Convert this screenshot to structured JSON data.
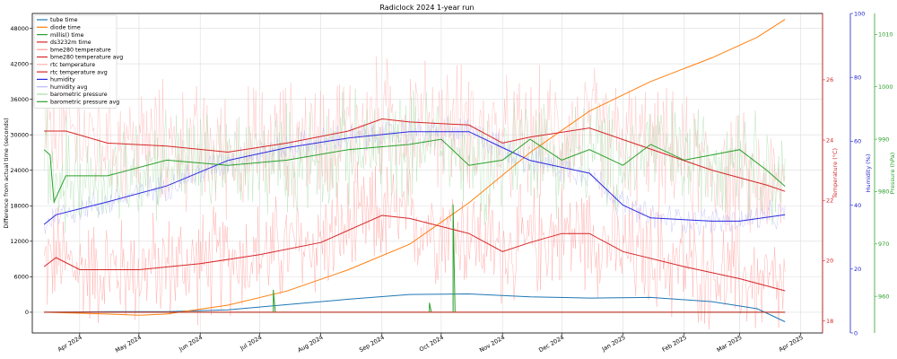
{
  "chart_data": {
    "type": "line",
    "title": "Radiclock 2024 1-year run",
    "ylabel": "Difference from actual time (seconds)",
    "x_ticks": [
      "Apr 2024",
      "May 2024",
      "Jun 2024",
      "Jul 2024",
      "Aug 2024",
      "Sep 2024",
      "Oct 2024",
      "Nov 2024",
      "Dec 2024",
      "Jan 2025",
      "Feb 2025",
      "Mar 2025",
      "Apr 2025"
    ],
    "xlim": [
      "2024-03-08",
      "2025-04-12"
    ],
    "grid": true,
    "legend_position": "upper left",
    "axes": {
      "left": {
        "label": "Difference from actual time (seconds)",
        "range": [
          -3500,
          50500
        ],
        "ticks": [
          0,
          6000,
          12000,
          18000,
          24000,
          30000,
          36000,
          42000,
          48000
        ],
        "color": "#000000"
      },
      "temp": {
        "label": "Temperature (°C)",
        "range": [
          17.6,
          28.2
        ],
        "ticks": [
          18,
          20,
          22,
          24,
          26
        ],
        "color": "#d62728"
      },
      "hum": {
        "label": "Humidity (%)",
        "range": [
          0,
          100
        ],
        "ticks": [
          0,
          20,
          40,
          60,
          80,
          100
        ],
        "color": "#1f1fcc"
      },
      "press": {
        "label": "Pressure (hPa)",
        "range": [
          953,
          1014
        ],
        "ticks": [
          960,
          970,
          980,
          990,
          1000,
          1010
        ],
        "color": "#2ca02c"
      }
    },
    "series": [
      {
        "name": "tube time",
        "axis": "left",
        "color": "#1f77b4",
        "points": [
          [
            "2024-03-14",
            0
          ],
          [
            "2024-04-15",
            100
          ],
          [
            "2024-05-15",
            100
          ],
          [
            "2024-06-15",
            400
          ],
          [
            "2024-07-15",
            1300
          ],
          [
            "2024-08-15",
            2200
          ],
          [
            "2024-09-15",
            3000
          ],
          [
            "2024-10-15",
            3100
          ],
          [
            "2024-11-15",
            2600
          ],
          [
            "2024-12-15",
            2400
          ],
          [
            "2025-01-15",
            2500
          ],
          [
            "2025-02-15",
            1800
          ],
          [
            "2025-03-10",
            600
          ],
          [
            "2025-03-24",
            -1600
          ]
        ]
      },
      {
        "name": "diode time",
        "axis": "left",
        "color": "#ff7f0e",
        "points": [
          [
            "2024-03-14",
            0
          ],
          [
            "2024-04-15",
            -300
          ],
          [
            "2024-05-01",
            -500
          ],
          [
            "2024-05-15",
            -300
          ],
          [
            "2024-06-15",
            1200
          ],
          [
            "2024-07-15",
            3600
          ],
          [
            "2024-08-15",
            7200
          ],
          [
            "2024-09-15",
            11500
          ],
          [
            "2024-10-15",
            18500
          ],
          [
            "2024-11-15",
            27000
          ],
          [
            "2024-12-15",
            34000
          ],
          [
            "2025-01-15",
            39000
          ],
          [
            "2025-02-15",
            43000
          ],
          [
            "2025-03-10",
            46500
          ],
          [
            "2025-03-24",
            49500
          ]
        ]
      },
      {
        "name": "millis() time",
        "axis": "left",
        "color": "#2ca02c",
        "points": [
          [
            "2024-03-14",
            0
          ],
          [
            "2024-07-08",
            0
          ],
          [
            "2024-07-08",
            3800
          ],
          [
            "2024-07-09",
            0
          ],
          [
            "2024-09-25",
            0
          ],
          [
            "2024-09-25",
            1600
          ],
          [
            "2024-09-26",
            0
          ],
          [
            "2024-10-07",
            0
          ],
          [
            "2024-10-07",
            18200
          ],
          [
            "2024-10-08",
            0
          ],
          [
            "2025-03-24",
            0
          ]
        ]
      },
      {
        "name": "ds3232m time",
        "axis": "left",
        "color": "#d62728",
        "points": [
          [
            "2024-03-14",
            0
          ],
          [
            "2025-03-24",
            0
          ]
        ]
      },
      {
        "name": "bme280 temperature",
        "axis": "temp",
        "color": "#ff9896",
        "noisy": true,
        "points": []
      },
      {
        "name": "bme280 temperature avg",
        "axis": "temp",
        "color": "#d62728",
        "points": [
          [
            "2024-03-14",
            19.8
          ],
          [
            "2024-03-20",
            20.1
          ],
          [
            "2024-04-01",
            19.7
          ],
          [
            "2024-05-01",
            19.7
          ],
          [
            "2024-06-01",
            19.9
          ],
          [
            "2024-07-01",
            20.2
          ],
          [
            "2024-08-01",
            20.6
          ],
          [
            "2024-09-01",
            21.5
          ],
          [
            "2024-09-15",
            21.4
          ],
          [
            "2024-10-15",
            20.9
          ],
          [
            "2024-11-01",
            20.3
          ],
          [
            "2024-11-15",
            20.6
          ],
          [
            "2024-12-01",
            20.9
          ],
          [
            "2024-12-15",
            20.9
          ],
          [
            "2025-01-01",
            20.3
          ],
          [
            "2025-02-01",
            19.8
          ],
          [
            "2025-03-01",
            19.4
          ],
          [
            "2025-03-24",
            19.0
          ]
        ]
      },
      {
        "name": "rtc temperature",
        "axis": "temp",
        "color": "#ffb0b0",
        "noisy": true,
        "points": []
      },
      {
        "name": "rtc temperature avg",
        "axis": "temp",
        "color": "#d62728",
        "points": [
          [
            "2024-03-14",
            24.3
          ],
          [
            "2024-03-25",
            24.3
          ],
          [
            "2024-04-15",
            23.9
          ],
          [
            "2024-05-15",
            23.8
          ],
          [
            "2024-06-15",
            23.6
          ],
          [
            "2024-07-15",
            23.9
          ],
          [
            "2024-08-15",
            24.3
          ],
          [
            "2024-09-01",
            24.7
          ],
          [
            "2024-09-15",
            24.6
          ],
          [
            "2024-10-15",
            24.5
          ],
          [
            "2024-11-01",
            23.9
          ],
          [
            "2024-11-15",
            24.1
          ],
          [
            "2024-12-15",
            24.4
          ],
          [
            "2025-01-15",
            23.7
          ],
          [
            "2025-02-15",
            23.0
          ],
          [
            "2025-03-15",
            22.5
          ],
          [
            "2025-03-24",
            22.3
          ]
        ]
      },
      {
        "name": "humidity",
        "axis": "hum",
        "color": "#2a2ae0",
        "points": [
          [
            "2024-03-14",
            34
          ],
          [
            "2024-03-20",
            37
          ],
          [
            "2024-04-15",
            41
          ],
          [
            "2024-05-15",
            46
          ],
          [
            "2024-06-15",
            54
          ],
          [
            "2024-07-15",
            58
          ],
          [
            "2024-08-15",
            61
          ],
          [
            "2024-09-15",
            63
          ],
          [
            "2024-10-15",
            63
          ],
          [
            "2024-11-01",
            58
          ],
          [
            "2024-11-15",
            54
          ],
          [
            "2024-12-15",
            50
          ],
          [
            "2025-01-01",
            40
          ],
          [
            "2025-01-15",
            36
          ],
          [
            "2025-02-15",
            35
          ],
          [
            "2025-03-01",
            35
          ],
          [
            "2025-03-24",
            37
          ]
        ]
      },
      {
        "name": "humidity avg",
        "axis": "hum",
        "color": "#b8b8f5",
        "noisy": true,
        "points": []
      },
      {
        "name": "barometric pressure",
        "axis": "press",
        "color": "#a8dca8",
        "noisy": true,
        "points": []
      },
      {
        "name": "barometric pressure avg",
        "axis": "press",
        "color": "#2ca02c",
        "points": [
          [
            "2024-03-14",
            988
          ],
          [
            "2024-03-17",
            987
          ],
          [
            "2024-03-19",
            978
          ],
          [
            "2024-03-25",
            983
          ],
          [
            "2024-04-15",
            983
          ],
          [
            "2024-05-15",
            986
          ],
          [
            "2024-06-15",
            985
          ],
          [
            "2024-07-15",
            986
          ],
          [
            "2024-08-15",
            988
          ],
          [
            "2024-09-15",
            989
          ],
          [
            "2024-10-01",
            990
          ],
          [
            "2024-10-15",
            985
          ],
          [
            "2024-11-01",
            986
          ],
          [
            "2024-11-15",
            990
          ],
          [
            "2024-12-01",
            986
          ],
          [
            "2024-12-15",
            988
          ],
          [
            "2025-01-01",
            985
          ],
          [
            "2025-01-15",
            989
          ],
          [
            "2025-02-01",
            986
          ],
          [
            "2025-02-15",
            987
          ],
          [
            "2025-03-01",
            988
          ],
          [
            "2025-03-15",
            984
          ],
          [
            "2025-03-24",
            981
          ]
        ]
      }
    ]
  }
}
